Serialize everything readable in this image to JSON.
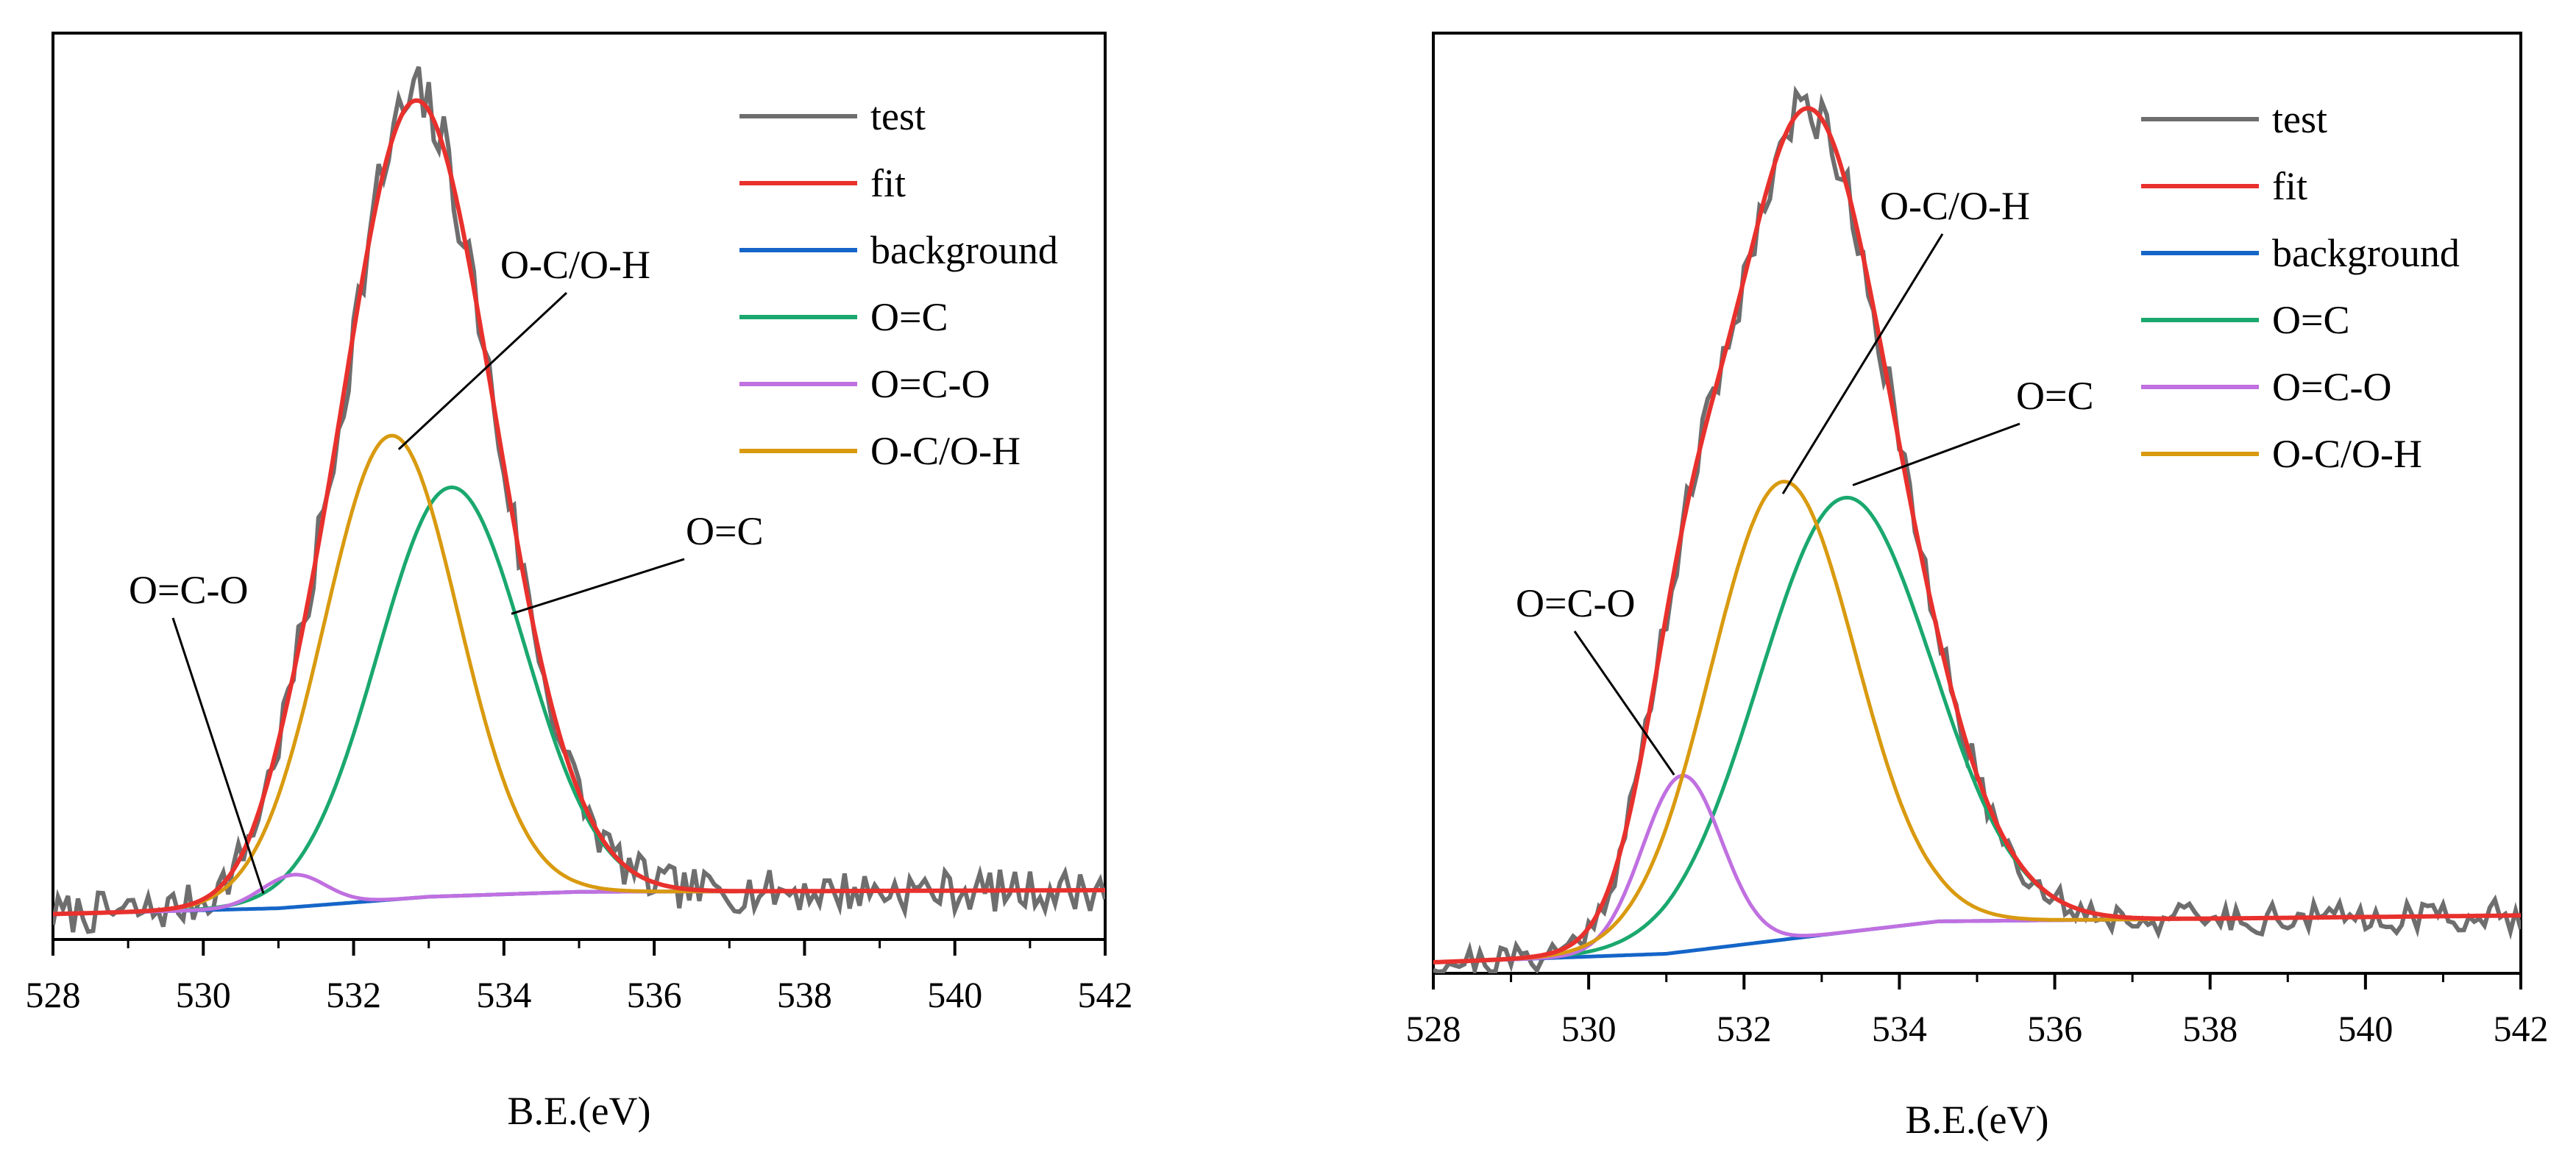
{
  "colors": {
    "test": "#6e6e6e",
    "fit": "#e8312d",
    "background": "#1565c8",
    "O=C": "#1aa86e",
    "O=C-O": "#c070e0",
    "O-C/O-H": "#d99a10"
  },
  "chart_data": [
    {
      "type": "line",
      "panel": "left",
      "xlabel": "B.E.(eV)",
      "ylabel": "",
      "xlim": [
        528,
        542
      ],
      "ylim": [
        0,
        1
      ],
      "xticks": [
        528,
        530,
        532,
        534,
        536,
        538,
        540,
        542
      ],
      "legend": [
        "test",
        "fit",
        "background",
        "O=C",
        "O=C-O",
        "O-C/O-H"
      ],
      "legend_position": "top-right",
      "background": {
        "x": [
          528,
          531,
          533,
          535,
          542
        ],
        "y": [
          0.005,
          0.012,
          0.026,
          0.032,
          0.034
        ]
      },
      "components": [
        {
          "name": "O=C",
          "center": 533.3,
          "height": 0.48,
          "fwhm": 2.3
        },
        {
          "name": "O=C-O",
          "center": 531.2,
          "height": 0.038,
          "fwhm": 1.0
        },
        {
          "name": "O-C/O-H",
          "center": 532.5,
          "height": 0.545,
          "fwhm": 2.1
        }
      ],
      "fit_peak": {
        "x": 532.8,
        "y": 0.995
      },
      "test_noise": 0.025,
      "test_seed": 7,
      "annotations": [
        {
          "text": "O-C/O-H",
          "target": [
            532.6,
            0.57
          ],
          "anchor": "upper-right"
        },
        {
          "text": "O=C",
          "target": [
            534.1,
            0.37
          ],
          "anchor": "upper-right"
        },
        {
          "text": "O=C-O",
          "target": [
            530.8,
            0.03
          ],
          "anchor": "upper-left"
        }
      ]
    },
    {
      "type": "line",
      "panel": "right",
      "xlabel": "B.E.(eV)",
      "ylabel": "",
      "xlim": [
        528,
        542
      ],
      "ylim": [
        0,
        1
      ],
      "xticks": [
        528,
        530,
        532,
        534,
        536,
        538,
        540,
        542
      ],
      "legend": [
        "test",
        "fit",
        "background",
        "O=C",
        "O=C-O",
        "O-C/O-H"
      ],
      "legend_position": "top-right",
      "background": {
        "x": [
          528,
          531,
          533,
          534.5,
          542
        ],
        "y": [
          0.0,
          0.01,
          0.032,
          0.048,
          0.055
        ]
      },
      "components": [
        {
          "name": "O=C",
          "center": 533.3,
          "height": 0.555,
          "fwhm": 2.6
        },
        {
          "name": "O=C-O",
          "center": 531.2,
          "height": 0.225,
          "fwhm": 1.2
        },
        {
          "name": "O-C/O-H",
          "center": 532.5,
          "height": 0.585,
          "fwhm": 2.2
        }
      ],
      "fit_peak": {
        "x": 532.9,
        "y": 1.0
      },
      "test_noise": 0.018,
      "test_seed": 21,
      "annotations": [
        {
          "text": "O-C/O-H",
          "target": [
            532.5,
            0.55
          ],
          "anchor": "upper-right"
        },
        {
          "text": "O=C",
          "target": [
            533.4,
            0.56
          ],
          "anchor": "upper-right"
        },
        {
          "text": "O=C-O",
          "target": [
            531.1,
            0.22
          ],
          "anchor": "upper-left"
        }
      ]
    }
  ]
}
